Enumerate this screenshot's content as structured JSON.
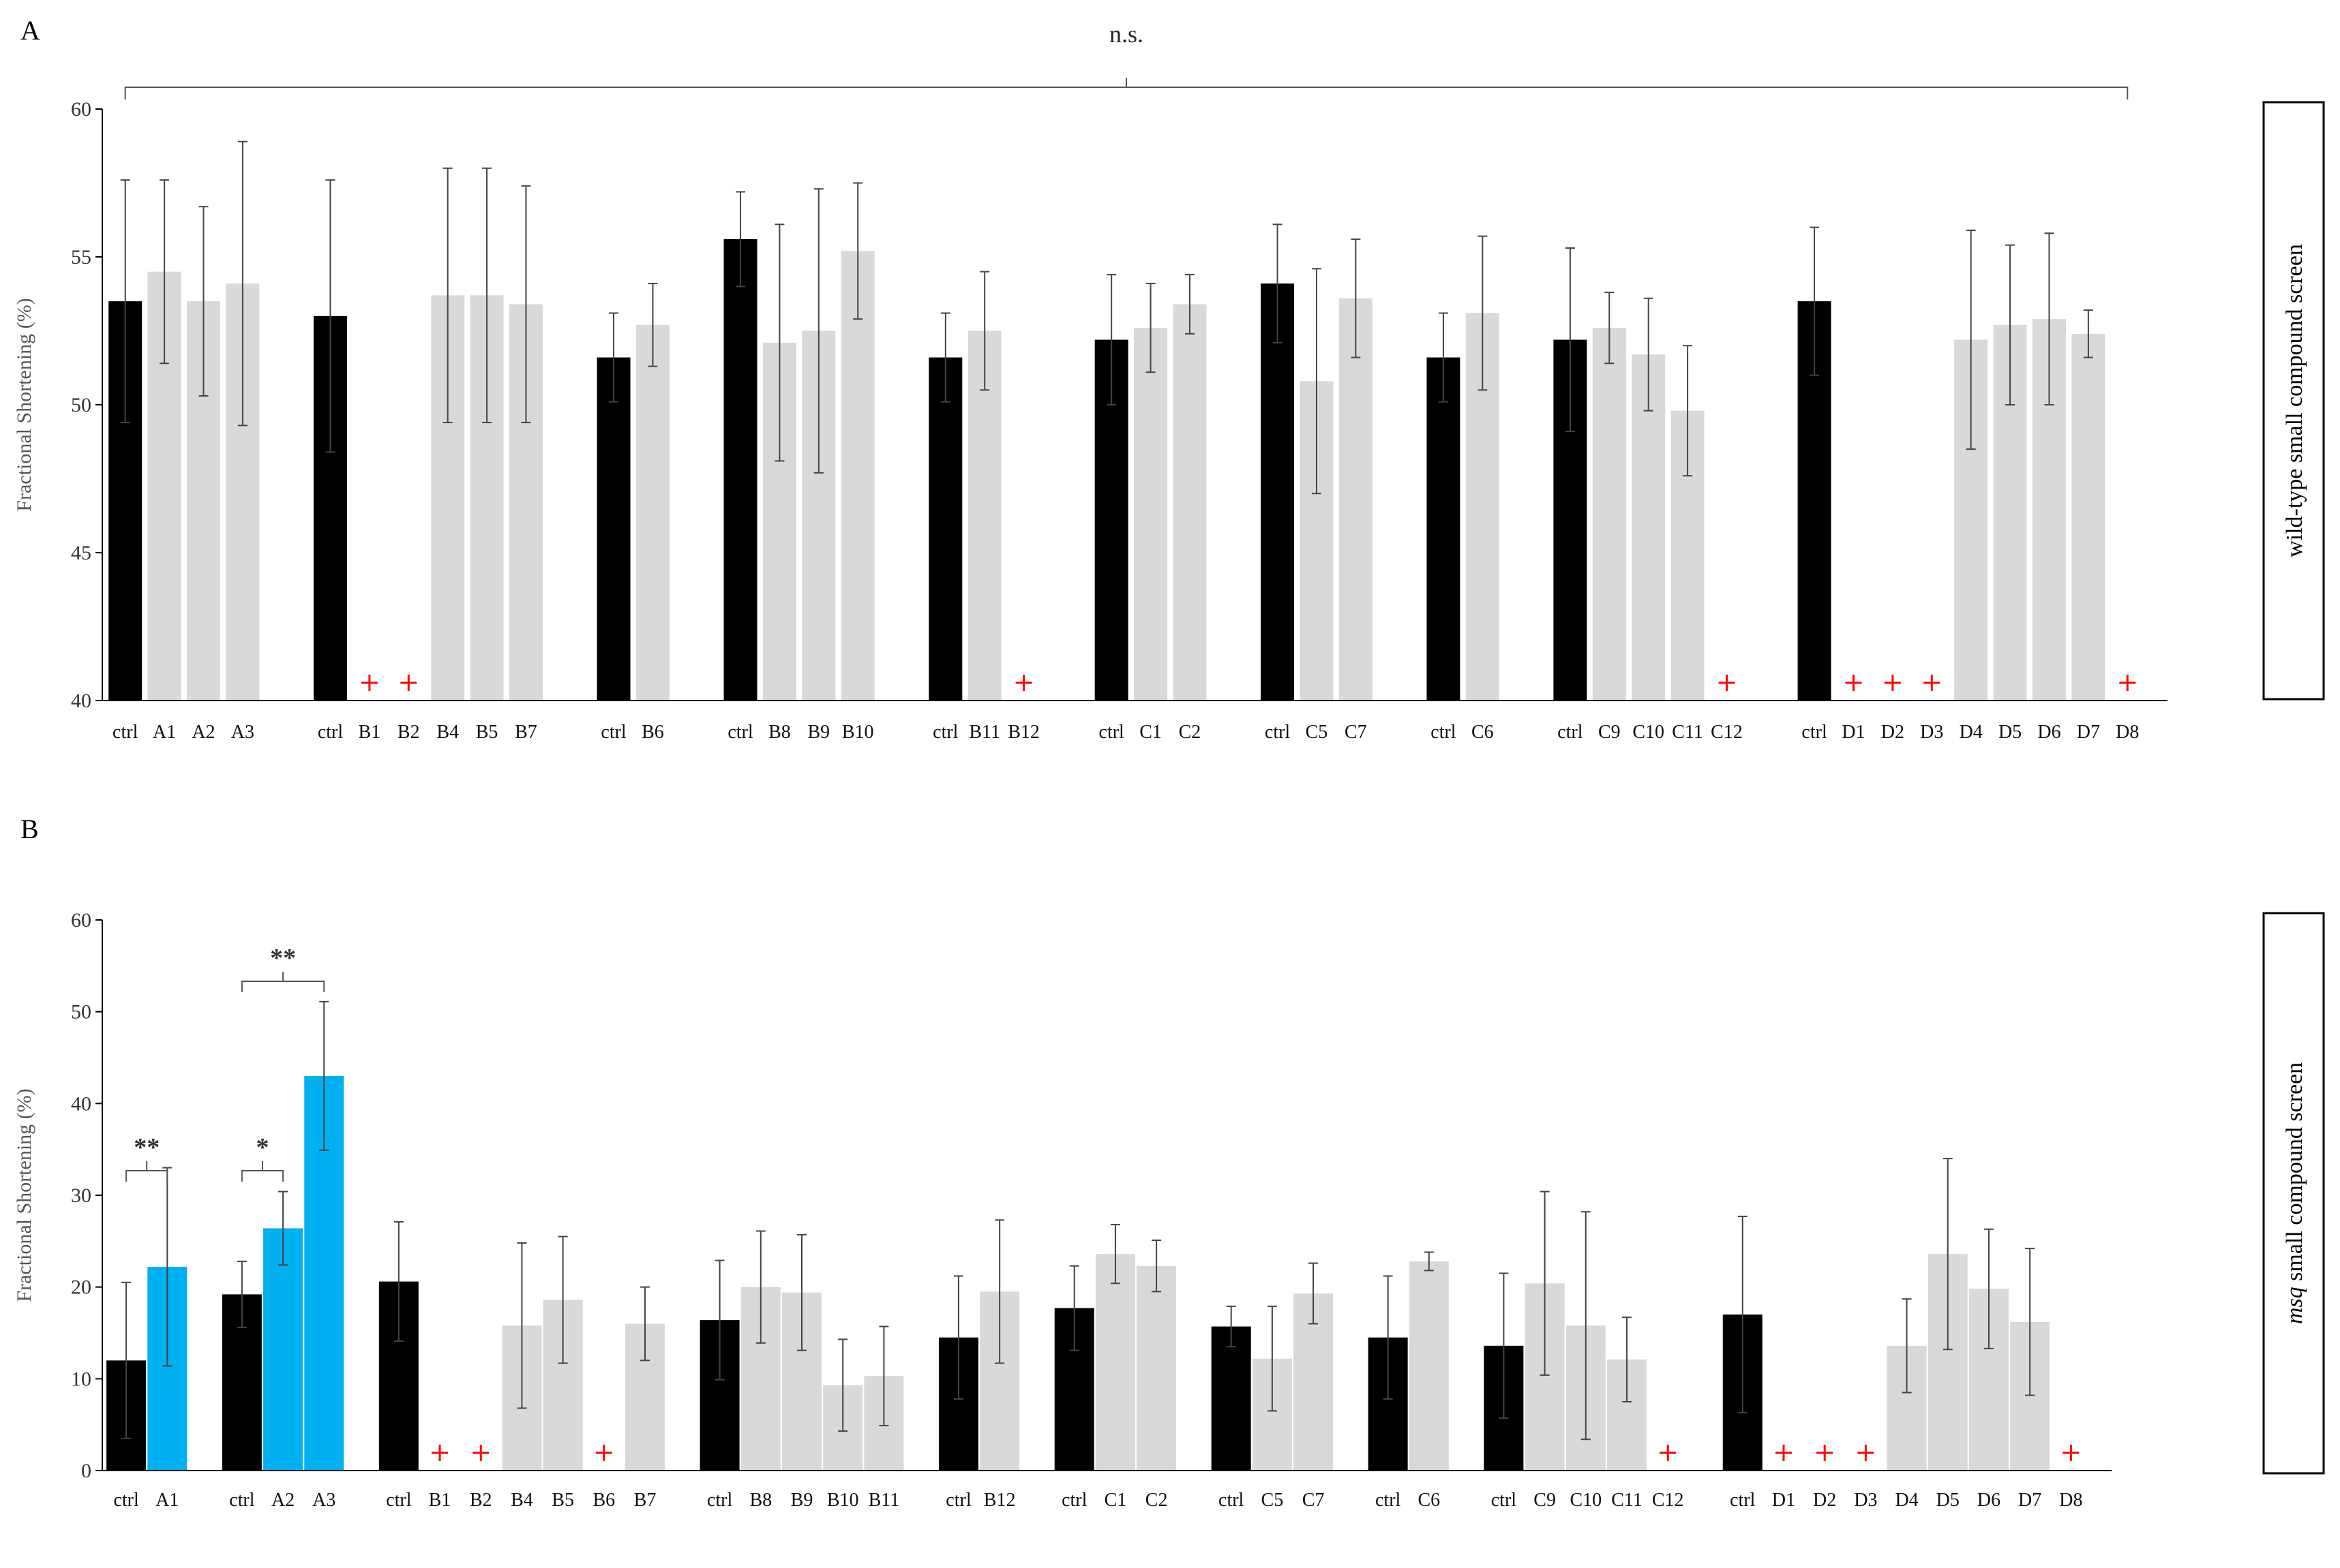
{
  "colors": {
    "ctrl": "#000000",
    "treated": "#d9d9d9",
    "significant": "#00b0f0",
    "dead_marker": "#ff0000",
    "axis": "#000000"
  },
  "chart_data": [
    {
      "panel_label": "A",
      "type": "bar",
      "title": "",
      "ylabel": "Fractional Shortening (%)",
      "side_label": "wild-type small compound screen",
      "ylim": [
        40,
        60
      ],
      "yticks": [
        "40",
        "45",
        "50",
        "55",
        "60"
      ],
      "bracket": {
        "from": 0,
        "to": 55,
        "label": "n.s."
      },
      "groups": [
        {
          "name": "A-group",
          "bars": [
            {
              "label": "ctrl",
              "value": 53.5,
              "err": 4.1,
              "kind": "ctrl"
            },
            {
              "label": "A1",
              "value": 54.5,
              "err": 3.1,
              "kind": "treated"
            },
            {
              "label": "A2",
              "value": 53.5,
              "err": 3.2,
              "kind": "treated"
            },
            {
              "label": "A3",
              "value": 54.1,
              "err": 4.8,
              "kind": "treated"
            }
          ]
        },
        {
          "name": "B-group1",
          "bars": [
            {
              "label": "ctrl",
              "value": 53.0,
              "err": 4.6,
              "kind": "ctrl"
            },
            {
              "label": "B1",
              "value": null,
              "kind": "dead"
            },
            {
              "label": "B2",
              "value": null,
              "kind": "dead"
            },
            {
              "label": "B4",
              "value": 53.7,
              "err": 4.3,
              "kind": "treated"
            },
            {
              "label": "B5",
              "value": 53.7,
              "err": 4.3,
              "kind": "treated"
            },
            {
              "label": "B7",
              "value": 53.4,
              "err": 4.0,
              "kind": "treated"
            }
          ]
        },
        {
          "name": "B-group2",
          "bars": [
            {
              "label": "ctrl",
              "value": 51.6,
              "err": 1.5,
              "kind": "ctrl"
            },
            {
              "label": "B6",
              "value": 52.7,
              "err": 1.4,
              "kind": "treated"
            }
          ]
        },
        {
          "name": "B-group3",
          "bars": [
            {
              "label": "ctrl",
              "value": 55.6,
              "err": 1.6,
              "kind": "ctrl"
            },
            {
              "label": "B8",
              "value": 52.1,
              "err": 4.0,
              "kind": "treated"
            },
            {
              "label": "B9",
              "value": 52.5,
              "err": 4.8,
              "kind": "treated"
            },
            {
              "label": "B10",
              "value": 55.2,
              "err": 2.3,
              "kind": "treated"
            }
          ]
        },
        {
          "name": "B-group4",
          "bars": [
            {
              "label": "ctrl",
              "value": 51.6,
              "err": 1.5,
              "kind": "ctrl"
            },
            {
              "label": "B11",
              "value": 52.5,
              "err": 2.0,
              "kind": "treated"
            },
            {
              "label": "B12",
              "value": null,
              "kind": "dead"
            }
          ]
        },
        {
          "name": "C-group1",
          "bars": [
            {
              "label": "ctrl",
              "value": 52.2,
              "err": 2.2,
              "kind": "ctrl"
            },
            {
              "label": "C1",
              "value": 52.6,
              "err": 1.5,
              "kind": "treated"
            },
            {
              "label": "C2",
              "value": 53.4,
              "err": 1.0,
              "kind": "treated"
            }
          ]
        },
        {
          "name": "C-group2",
          "bars": [
            {
              "label": "ctrl",
              "value": 54.1,
              "err": 2.0,
              "kind": "ctrl"
            },
            {
              "label": "C5",
              "value": 50.8,
              "err": 3.8,
              "kind": "treated"
            },
            {
              "label": "C7",
              "value": 53.6,
              "err": 2.0,
              "kind": "treated"
            }
          ]
        },
        {
          "name": "C-group3",
          "bars": [
            {
              "label": "ctrl",
              "value": 51.6,
              "err": 1.5,
              "kind": "ctrl"
            },
            {
              "label": "C6",
              "value": 53.1,
              "err": 2.6,
              "kind": "treated"
            }
          ]
        },
        {
          "name": "C-group4",
          "bars": [
            {
              "label": "ctrl",
              "value": 52.2,
              "err": 3.1,
              "kind": "ctrl"
            },
            {
              "label": "C9",
              "value": 52.6,
              "err": 1.2,
              "kind": "treated"
            },
            {
              "label": "C10",
              "value": 51.7,
              "err": 1.9,
              "kind": "treated"
            },
            {
              "label": "C11",
              "value": 49.8,
              "err": 2.2,
              "kind": "treated"
            },
            {
              "label": "C12",
              "value": null,
              "kind": "dead"
            }
          ]
        },
        {
          "name": "D-group",
          "bars": [
            {
              "label": "ctrl",
              "value": 53.5,
              "err": 2.5,
              "kind": "ctrl"
            },
            {
              "label": "D1",
              "value": null,
              "kind": "dead"
            },
            {
              "label": "D2",
              "value": null,
              "kind": "dead"
            },
            {
              "label": "D3",
              "value": null,
              "kind": "dead"
            },
            {
              "label": "D4",
              "value": 52.2,
              "err": 3.7,
              "kind": "treated"
            },
            {
              "label": "D5",
              "value": 52.7,
              "err": 2.7,
              "kind": "treated"
            },
            {
              "label": "D6",
              "value": 52.9,
              "err": 2.9,
              "kind": "treated"
            },
            {
              "label": "D7",
              "value": 52.4,
              "err": 0.8,
              "kind": "treated"
            },
            {
              "label": "D8",
              "value": null,
              "kind": "dead"
            }
          ]
        }
      ]
    },
    {
      "panel_label": "B",
      "type": "bar",
      "title": "",
      "ylabel": "Fractional Shortening (%)",
      "side_label_italic": "msq",
      "side_label": " small compound screen",
      "ylim": [
        0,
        60
      ],
      "yticks": [
        "0",
        "10",
        "20",
        "30",
        "40",
        "50",
        "60"
      ],
      "significance": [
        {
          "from": "ctrl-A1",
          "to": "A1",
          "label": "**"
        },
        {
          "from": "ctrl-A2",
          "to": "A2",
          "label": "*"
        },
        {
          "from": "ctrl-A2",
          "to": "A3",
          "label": "**"
        }
      ],
      "groups": [
        {
          "name": "A1-group",
          "bars": [
            {
              "label": "ctrl",
              "value": 12.0,
              "err": 8.5,
              "kind": "ctrl"
            },
            {
              "label": "A1",
              "value": 22.2,
              "err": 10.8,
              "kind": "significant"
            }
          ]
        },
        {
          "name": "A2-group",
          "bars": [
            {
              "label": "ctrl",
              "value": 19.2,
              "err": 3.6,
              "kind": "ctrl"
            },
            {
              "label": "A2",
              "value": 26.4,
              "err": 4.0,
              "kind": "significant"
            },
            {
              "label": "A3",
              "value": 43.0,
              "err": 8.1,
              "kind": "significant"
            }
          ]
        },
        {
          "name": "B-group1",
          "bars": [
            {
              "label": "ctrl",
              "value": 20.6,
              "err": 6.5,
              "kind": "ctrl"
            },
            {
              "label": "B1",
              "value": null,
              "kind": "dead"
            },
            {
              "label": "B2",
              "value": null,
              "kind": "dead"
            },
            {
              "label": "B4",
              "value": 15.8,
              "err": 9.0,
              "kind": "treated"
            },
            {
              "label": "B5",
              "value": 18.6,
              "err": 6.9,
              "kind": "treated"
            },
            {
              "label": "B6",
              "value": null,
              "kind": "dead"
            },
            {
              "label": "B7",
              "value": 16.0,
              "err": 4.0,
              "kind": "treated"
            }
          ]
        },
        {
          "name": "B-group2",
          "bars": [
            {
              "label": "ctrl",
              "value": 16.4,
              "err": 6.5,
              "kind": "ctrl"
            },
            {
              "label": "B8",
              "value": 20.0,
              "err": 6.1,
              "kind": "treated"
            },
            {
              "label": "B9",
              "value": 19.4,
              "err": 6.3,
              "kind": "treated"
            },
            {
              "label": "B10",
              "value": 9.3,
              "err": 5.0,
              "kind": "treated"
            },
            {
              "label": "B11",
              "value": 10.3,
              "err": 5.4,
              "kind": "treated"
            }
          ]
        },
        {
          "name": "B-group3",
          "bars": [
            {
              "label": "ctrl",
              "value": 14.5,
              "err": 6.7,
              "kind": "ctrl"
            },
            {
              "label": "B12",
              "value": 19.5,
              "err": 7.8,
              "kind": "treated"
            }
          ]
        },
        {
          "name": "C-group1",
          "bars": [
            {
              "label": "ctrl",
              "value": 17.7,
              "err": 4.6,
              "kind": "ctrl"
            },
            {
              "label": "C1",
              "value": 23.6,
              "err": 3.2,
              "kind": "treated"
            },
            {
              "label": "C2",
              "value": 22.3,
              "err": 2.8,
              "kind": "treated"
            }
          ]
        },
        {
          "name": "C-group2",
          "bars": [
            {
              "label": "ctrl",
              "value": 15.7,
              "err": 2.2,
              "kind": "ctrl"
            },
            {
              "label": "C5",
              "value": 12.2,
              "err": 5.7,
              "kind": "treated"
            },
            {
              "label": "C7",
              "value": 19.3,
              "err": 3.3,
              "kind": "treated"
            }
          ]
        },
        {
          "name": "C-group3",
          "bars": [
            {
              "label": "ctrl",
              "value": 14.5,
              "err": 6.7,
              "kind": "ctrl"
            },
            {
              "label": "C6",
              "value": 22.8,
              "err": 1.0,
              "kind": "treated"
            }
          ]
        },
        {
          "name": "C-group4",
          "bars": [
            {
              "label": "ctrl",
              "value": 13.6,
              "err": 7.9,
              "kind": "ctrl"
            },
            {
              "label": "C9",
              "value": 20.4,
              "err": 10.0,
              "kind": "treated"
            },
            {
              "label": "C10",
              "value": 15.8,
              "err": 12.4,
              "kind": "treated"
            },
            {
              "label": "C11",
              "value": 12.1,
              "err": 4.6,
              "kind": "treated"
            },
            {
              "label": "C12",
              "value": null,
              "kind": "dead"
            }
          ]
        },
        {
          "name": "D-group",
          "bars": [
            {
              "label": "ctrl",
              "value": 17.0,
              "err": 10.7,
              "kind": "ctrl"
            },
            {
              "label": "D1",
              "value": null,
              "kind": "dead"
            },
            {
              "label": "D2",
              "value": null,
              "kind": "dead"
            },
            {
              "label": "D3",
              "value": null,
              "kind": "dead"
            },
            {
              "label": "D4",
              "value": 13.6,
              "err": 5.1,
              "kind": "treated"
            },
            {
              "label": "D5",
              "value": 23.6,
              "err": 10.4,
              "kind": "treated"
            },
            {
              "label": "D6",
              "value": 19.8,
              "err": 6.5,
              "kind": "treated"
            },
            {
              "label": "D7",
              "value": 16.2,
              "err": 8.0,
              "kind": "treated"
            },
            {
              "label": "D8",
              "value": null,
              "kind": "dead"
            }
          ]
        }
      ]
    }
  ]
}
